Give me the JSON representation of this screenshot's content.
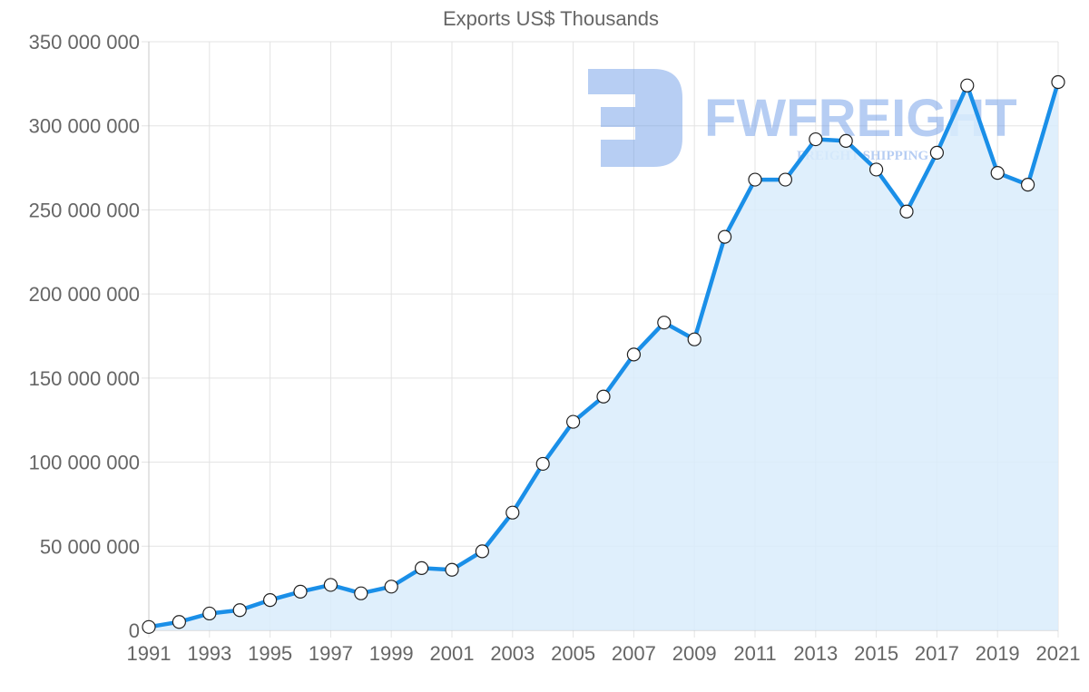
{
  "chart_data": {
    "type": "area",
    "title": "Exports US$ Thousands",
    "xlabel": "",
    "ylabel": "",
    "ylim": [
      0,
      350000000
    ],
    "grid": true,
    "legend": null,
    "x_tick_labels": [
      "1991",
      "1993",
      "1995",
      "1997",
      "1999",
      "2001",
      "2003",
      "2005",
      "2007",
      "2009",
      "2011",
      "2013",
      "2015",
      "2017",
      "2019",
      "2021"
    ],
    "y_tick_labels": [
      "0",
      "50 000 000",
      "100 000 000",
      "150 000 000",
      "200 000 000",
      "250 000 000",
      "300 000 000",
      "350 000 000"
    ],
    "y_ticks": [
      0,
      50000000,
      100000000,
      150000000,
      200000000,
      250000000,
      300000000,
      350000000
    ],
    "x": [
      1991,
      1992,
      1993,
      1994,
      1995,
      1996,
      1997,
      1998,
      1999,
      2000,
      2001,
      2002,
      2003,
      2004,
      2005,
      2006,
      2007,
      2008,
      2009,
      2010,
      2011,
      2012,
      2013,
      2014,
      2015,
      2016,
      2017,
      2018,
      2019,
      2020,
      2021
    ],
    "series": [
      {
        "name": "Exports US$ Thousands",
        "values": [
          2000000,
          5000000,
          10000000,
          12000000,
          18000000,
          23000000,
          27000000,
          22000000,
          26000000,
          37000000,
          36000000,
          47000000,
          70000000,
          99000000,
          124000000,
          139000000,
          164000000,
          183000000,
          173000000,
          234000000,
          268000000,
          268000000,
          292000000,
          291000000,
          274000000,
          249000000,
          284000000,
          324000000,
          272000000,
          265000000,
          326000000
        ]
      }
    ],
    "colors": {
      "line": "#1a8fe8",
      "fill": "#d9ecfc",
      "grid": "#e3e3e3",
      "point_fill": "#ffffff",
      "point_stroke": "#222222",
      "text": "#666666"
    }
  },
  "watermark": {
    "brand": "FWFREIGHT",
    "tagline": "FREIGHT SHIPPING",
    "color": "#6f9de8"
  }
}
